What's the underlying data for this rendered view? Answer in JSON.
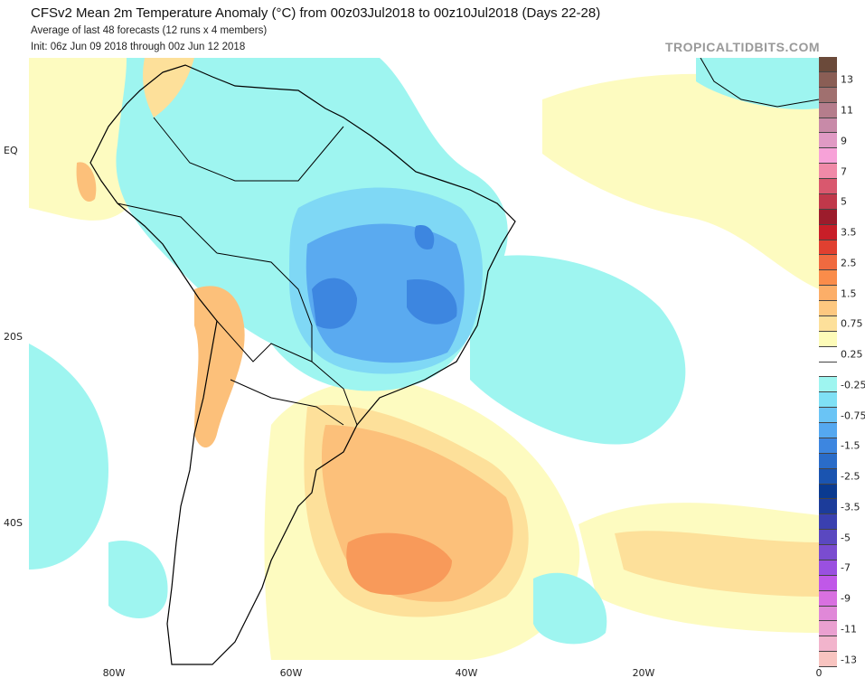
{
  "header": {
    "title": "CFSv2 Mean 2m Temperature Anomaly (°C) from 00z03Jul2018 to 00z10Jul2018 (Days 22-28)",
    "subtitle": "Average of last 48 forecasts (12 runs x 4 members)",
    "init": "Init: 06z Jun 09 2018 through 00z Jun 12 2018",
    "brand": "TROPICALTIDBITS.COM"
  },
  "map": {
    "lat_labels": [
      "EQ",
      "20S",
      "40S"
    ],
    "lon_labels": [
      "80W",
      "60W",
      "40W",
      "20W",
      "0"
    ],
    "colors": {
      "cyan": "#9ef5f0",
      "light_blue": "#7fd8f5",
      "blue": "#5aaaf0",
      "mid_blue": "#3d86e0",
      "dark_blue": "#2a6cc8",
      "pale_yellow": "#fdfbc0",
      "yellow": "#fde79a",
      "light_orange": "#fcc07a",
      "orange": "#f89a5a",
      "coast": "#000000"
    }
  },
  "colorbar": {
    "labels": [
      "13",
      "11",
      "9",
      "7",
      "5",
      "3.5",
      "2.5",
      "1.5",
      "0.75",
      "0.25",
      "-0.25",
      "-0.75",
      "-1.5",
      "-2.5",
      "-3.5",
      "-5",
      "-7",
      "-9",
      "-11",
      "-13"
    ],
    "colors": [
      "#6b4a3a",
      "#8a5e55",
      "#a0706f",
      "#b57d8c",
      "#c88aa8",
      "#e09ac4",
      "#f7a2d8",
      "#f08aa8",
      "#d9586e",
      "#c0384a",
      "#9c1c2c",
      "#c81e28",
      "#e04030",
      "#f06a40",
      "#fa8c4a",
      "#fcae68",
      "#fdc880",
      "#fde09a",
      "#fdfbb8",
      "#ffffff",
      "#ffffff",
      "#9ef5f0",
      "#7fe0f5",
      "#6ac4f5",
      "#55a8f0",
      "#3d86e0",
      "#2a6cc8",
      "#1a54b0",
      "#0a3a90",
      "#1c3c9a",
      "#3a40b0",
      "#5a48c0",
      "#7a4cd0",
      "#9a50e0",
      "#c058e8",
      "#d870e0",
      "#e088d8",
      "#eaa0d0",
      "#f2b4cc",
      "#f8c4c0"
    ]
  }
}
